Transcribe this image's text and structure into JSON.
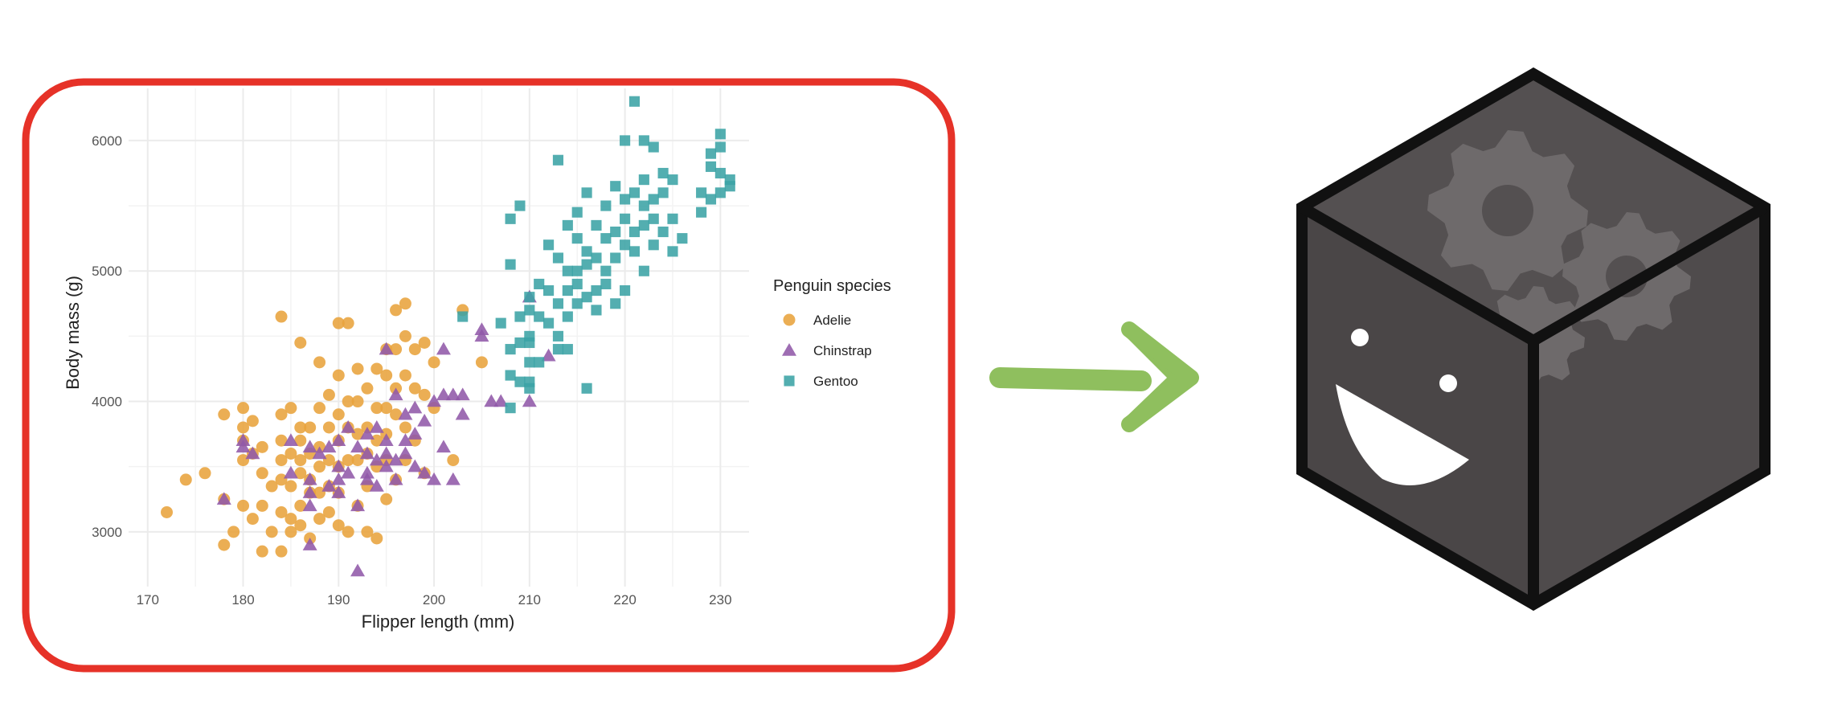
{
  "chart_data": {
    "type": "scatter",
    "title": "",
    "xlabel": "Flipper length (mm)",
    "ylabel": "Body mass (g)",
    "xlim": [
      168,
      233
    ],
    "ylim": [
      2580,
      6400
    ],
    "xticks": [
      170,
      180,
      190,
      200,
      210,
      220,
      230
    ],
    "yticks": [
      3000,
      4000,
      5000,
      6000
    ],
    "grid": true,
    "legend": {
      "title": "Penguin species",
      "position": "right"
    },
    "series": [
      {
        "name": "Adelie",
        "marker": "circle",
        "color": "#E8A33C",
        "points": [
          [
            172,
            3150
          ],
          [
            174,
            3400
          ],
          [
            176,
            3450
          ],
          [
            178,
            3900
          ],
          [
            178,
            3250
          ],
          [
            178,
            2900
          ],
          [
            179,
            3000
          ],
          [
            180,
            3950
          ],
          [
            180,
            3800
          ],
          [
            180,
            3700
          ],
          [
            180,
            3550
          ],
          [
            180,
            3200
          ],
          [
            181,
            3600
          ],
          [
            181,
            3100
          ],
          [
            181,
            3850
          ],
          [
            182,
            3650
          ],
          [
            182,
            3450
          ],
          [
            182,
            3200
          ],
          [
            182,
            2850
          ],
          [
            183,
            3350
          ],
          [
            183,
            3000
          ],
          [
            184,
            4650
          ],
          [
            184,
            3900
          ],
          [
            184,
            3700
          ],
          [
            184,
            3550
          ],
          [
            184,
            3400
          ],
          [
            184,
            3150
          ],
          [
            184,
            2850
          ],
          [
            185,
            3950
          ],
          [
            185,
            3600
          ],
          [
            185,
            3350
          ],
          [
            185,
            3100
          ],
          [
            185,
            3000
          ],
          [
            186,
            4450
          ],
          [
            186,
            3800
          ],
          [
            186,
            3700
          ],
          [
            186,
            3550
          ],
          [
            186,
            3450
          ],
          [
            186,
            3200
          ],
          [
            186,
            3050
          ],
          [
            187,
            3800
          ],
          [
            187,
            3600
          ],
          [
            187,
            3400
          ],
          [
            187,
            3300
          ],
          [
            187,
            2950
          ],
          [
            188,
            4300
          ],
          [
            188,
            3950
          ],
          [
            188,
            3650
          ],
          [
            188,
            3500
          ],
          [
            188,
            3300
          ],
          [
            188,
            3100
          ],
          [
            189,
            4050
          ],
          [
            189,
            3800
          ],
          [
            189,
            3550
          ],
          [
            189,
            3350
          ],
          [
            189,
            3150
          ],
          [
            190,
            4600
          ],
          [
            190,
            4200
          ],
          [
            190,
            3900
          ],
          [
            190,
            3700
          ],
          [
            190,
            3500
          ],
          [
            190,
            3300
          ],
          [
            190,
            3050
          ],
          [
            191,
            4600
          ],
          [
            191,
            4000
          ],
          [
            191,
            3800
          ],
          [
            191,
            3550
          ],
          [
            191,
            3000
          ],
          [
            192,
            4250
          ],
          [
            192,
            4000
          ],
          [
            192,
            3750
          ],
          [
            192,
            3550
          ],
          [
            192,
            3200
          ],
          [
            193,
            4100
          ],
          [
            193,
            3800
          ],
          [
            193,
            3600
          ],
          [
            193,
            3350
          ],
          [
            193,
            3000
          ],
          [
            194,
            4250
          ],
          [
            194,
            3950
          ],
          [
            194,
            3700
          ],
          [
            194,
            3500
          ],
          [
            194,
            2950
          ],
          [
            195,
            4400
          ],
          [
            195,
            4200
          ],
          [
            195,
            3950
          ],
          [
            195,
            3750
          ],
          [
            195,
            3550
          ],
          [
            195,
            3250
          ],
          [
            196,
            4700
          ],
          [
            196,
            4400
          ],
          [
            196,
            4100
          ],
          [
            196,
            3900
          ],
          [
            196,
            3400
          ],
          [
            197,
            4750
          ],
          [
            197,
            4500
          ],
          [
            197,
            4200
          ],
          [
            197,
            3800
          ],
          [
            197,
            3550
          ],
          [
            198,
            4400
          ],
          [
            198,
            4100
          ],
          [
            198,
            3700
          ],
          [
            199,
            4450
          ],
          [
            199,
            4050
          ],
          [
            199,
            3450
          ],
          [
            200,
            4300
          ],
          [
            200,
            3950
          ],
          [
            202,
            3550
          ],
          [
            203,
            4700
          ],
          [
            205,
            4300
          ]
        ]
      },
      {
        "name": "Chinstrap",
        "marker": "triangle",
        "color": "#9159A8",
        "points": [
          [
            178,
            3250
          ],
          [
            180,
            3700
          ],
          [
            180,
            3650
          ],
          [
            181,
            3600
          ],
          [
            185,
            3700
          ],
          [
            185,
            3450
          ],
          [
            187,
            3650
          ],
          [
            187,
            3400
          ],
          [
            187,
            3300
          ],
          [
            187,
            3200
          ],
          [
            187,
            2900
          ],
          [
            188,
            3600
          ],
          [
            189,
            3650
          ],
          [
            189,
            3350
          ],
          [
            190,
            3700
          ],
          [
            190,
            3500
          ],
          [
            190,
            3400
          ],
          [
            190,
            3300
          ],
          [
            191,
            3800
          ],
          [
            191,
            3450
          ],
          [
            192,
            3650
          ],
          [
            192,
            3200
          ],
          [
            192,
            2700
          ],
          [
            193,
            3750
          ],
          [
            193,
            3600
          ],
          [
            193,
            3450
          ],
          [
            193,
            3400
          ],
          [
            194,
            3800
          ],
          [
            194,
            3550
          ],
          [
            194,
            3350
          ],
          [
            195,
            4400
          ],
          [
            195,
            3700
          ],
          [
            195,
            3600
          ],
          [
            195,
            3500
          ],
          [
            196,
            4050
          ],
          [
            196,
            3550
          ],
          [
            196,
            3400
          ],
          [
            197,
            3900
          ],
          [
            197,
            3700
          ],
          [
            197,
            3600
          ],
          [
            198,
            3950
          ],
          [
            198,
            3750
          ],
          [
            198,
            3500
          ],
          [
            199,
            3850
          ],
          [
            199,
            3450
          ],
          [
            200,
            4000
          ],
          [
            200,
            3400
          ],
          [
            201,
            4400
          ],
          [
            201,
            4050
          ],
          [
            201,
            3650
          ],
          [
            202,
            4050
          ],
          [
            202,
            3400
          ],
          [
            203,
            4050
          ],
          [
            203,
            3900
          ],
          [
            205,
            4550
          ],
          [
            205,
            4500
          ],
          [
            206,
            4000
          ],
          [
            207,
            4000
          ],
          [
            210,
            4800
          ],
          [
            210,
            4000
          ],
          [
            212,
            4350
          ]
        ]
      },
      {
        "name": "Gentoo",
        "marker": "square",
        "color": "#3BA3A5",
        "points": [
          [
            203,
            4650
          ],
          [
            207,
            4600
          ],
          [
            208,
            4200
          ],
          [
            208,
            4400
          ],
          [
            208,
            3950
          ],
          [
            208,
            5400
          ],
          [
            208,
            5050
          ],
          [
            209,
            4150
          ],
          [
            209,
            4450
          ],
          [
            209,
            4650
          ],
          [
            209,
            5500
          ],
          [
            210,
            4300
          ],
          [
            210,
            4500
          ],
          [
            210,
            4700
          ],
          [
            210,
            4800
          ],
          [
            210,
            4100
          ],
          [
            210,
            4150
          ],
          [
            210,
            4450
          ],
          [
            211,
            4650
          ],
          [
            211,
            4900
          ],
          [
            211,
            4300
          ],
          [
            212,
            4850
          ],
          [
            212,
            5200
          ],
          [
            212,
            4600
          ],
          [
            213,
            4500
          ],
          [
            213,
            4750
          ],
          [
            213,
            5100
          ],
          [
            213,
            5850
          ],
          [
            213,
            4400
          ],
          [
            214,
            4650
          ],
          [
            214,
            4850
          ],
          [
            214,
            5000
          ],
          [
            214,
            5350
          ],
          [
            214,
            4400
          ],
          [
            215,
            4750
          ],
          [
            215,
            5000
          ],
          [
            215,
            5250
          ],
          [
            215,
            5450
          ],
          [
            215,
            4900
          ],
          [
            216,
            4800
          ],
          [
            216,
            5050
          ],
          [
            216,
            5150
          ],
          [
            216,
            4100
          ],
          [
            216,
            5600
          ],
          [
            217,
            4850
          ],
          [
            217,
            5100
          ],
          [
            217,
            5350
          ],
          [
            217,
            4700
          ],
          [
            218,
            5000
          ],
          [
            218,
            5250
          ],
          [
            218,
            5500
          ],
          [
            218,
            4900
          ],
          [
            219,
            5100
          ],
          [
            219,
            5300
          ],
          [
            219,
            5650
          ],
          [
            219,
            4750
          ],
          [
            220,
            5200
          ],
          [
            220,
            5400
          ],
          [
            220,
            5550
          ],
          [
            220,
            6000
          ],
          [
            220,
            4850
          ],
          [
            221,
            5300
          ],
          [
            221,
            5600
          ],
          [
            221,
            5150
          ],
          [
            221,
            6300
          ],
          [
            222,
            5350
          ],
          [
            222,
            5700
          ],
          [
            222,
            5000
          ],
          [
            222,
            5500
          ],
          [
            222,
            6000
          ],
          [
            223,
            5400
          ],
          [
            223,
            5550
          ],
          [
            223,
            5950
          ],
          [
            223,
            5200
          ],
          [
            224,
            5600
          ],
          [
            224,
            5750
          ],
          [
            224,
            5300
          ],
          [
            225,
            5400
          ],
          [
            225,
            5700
          ],
          [
            225,
            5150
          ],
          [
            226,
            5250
          ],
          [
            228,
            5450
          ],
          [
            228,
            5600
          ],
          [
            229,
            5900
          ],
          [
            229,
            5800
          ],
          [
            230,
            5950
          ],
          [
            230,
            5750
          ],
          [
            230,
            6050
          ],
          [
            230,
            5600
          ],
          [
            231,
            5700
          ],
          [
            231,
            5650
          ],
          [
            229,
            5550
          ]
        ]
      }
    ]
  },
  "diagram": {
    "frame_color": "#E63228",
    "arrow_color": "#8FBF5E",
    "cube": {
      "face_color": "#545051",
      "edge_color": "#111111",
      "gear_color": "#6E6A6B",
      "icons": [
        "gear-icon",
        "gear-icon",
        "gear-icon",
        "smiley-face"
      ]
    }
  }
}
